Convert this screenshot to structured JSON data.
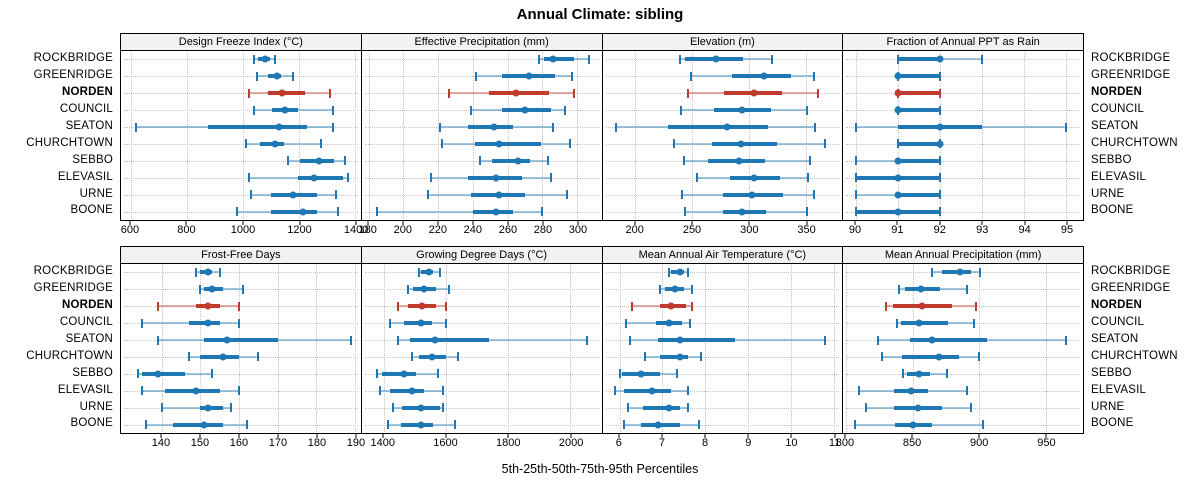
{
  "title": "Annual Climate: sibling",
  "caption": "5th-25th-50th-75th-95th Percentiles",
  "sites": [
    "ROCKBRIDGE",
    "GREENRIDGE",
    "NORDEN",
    "COUNCIL",
    "SEATON",
    "CHURCHTOWN",
    "SEBBO",
    "ELEVASIL",
    "URNE",
    "BOONE"
  ],
  "highlight_site": "NORDEN",
  "colors": {
    "series": "#1f77b4",
    "highlight": "#c13a2e",
    "grid": "#c4c4c4",
    "strip_bg": "#f2f2f2"
  },
  "chart_data": [
    {
      "type": "dotplot-percentiles",
      "title": "Design Freeze Index (°C)",
      "percentile_levels": [
        5,
        25,
        50,
        75,
        95
      ],
      "xlim": [
        565,
        1420
      ],
      "ticks": [
        600,
        800,
        1000,
        1200,
        1400
      ],
      "series": [
        {
          "site": "ROCKBRIDGE",
          "percentiles": [
            1040,
            1055,
            1080,
            1095,
            1115
          ]
        },
        {
          "site": "GREENRIDGE",
          "percentiles": [
            1050,
            1090,
            1120,
            1135,
            1180
          ]
        },
        {
          "site": "NORDEN",
          "percentiles": [
            1020,
            1090,
            1140,
            1220,
            1310
          ]
        },
        {
          "site": "COUNCIL",
          "percentiles": [
            1040,
            1105,
            1150,
            1195,
            1320
          ]
        },
        {
          "site": "SEATON",
          "percentiles": [
            620,
            875,
            1130,
            1230,
            1320
          ]
        },
        {
          "site": "CHURCHTOWN",
          "percentiles": [
            1010,
            1060,
            1115,
            1145,
            1280
          ]
        },
        {
          "site": "SEBBO",
          "percentiles": [
            1160,
            1205,
            1270,
            1325,
            1365
          ]
        },
        {
          "site": "ELEVASIL",
          "percentiles": [
            1020,
            1195,
            1255,
            1355,
            1375
          ]
        },
        {
          "site": "URNE",
          "percentiles": [
            1030,
            1100,
            1180,
            1265,
            1330
          ]
        },
        {
          "site": "BOONE",
          "percentiles": [
            980,
            1100,
            1215,
            1265,
            1340
          ]
        }
      ]
    },
    {
      "type": "dotplot-percentiles",
      "title": "Effective Precipitation (mm)",
      "percentile_levels": [
        5,
        25,
        50,
        75,
        95
      ],
      "xlim": [
        176,
        314
      ],
      "ticks": [
        180,
        200,
        220,
        240,
        260,
        280,
        300
      ],
      "series": [
        {
          "site": "ROCKBRIDGE",
          "percentiles": [
            278,
            281,
            286,
            298,
            307
          ]
        },
        {
          "site": "GREENRIDGE",
          "percentiles": [
            242,
            257,
            272,
            287,
            297
          ]
        },
        {
          "site": "NORDEN",
          "percentiles": [
            226,
            249,
            265,
            284,
            298
          ]
        },
        {
          "site": "COUNCIL",
          "percentiles": [
            239,
            257,
            270,
            285,
            293
          ]
        },
        {
          "site": "SEATON",
          "percentiles": [
            221,
            237,
            252,
            263,
            286
          ]
        },
        {
          "site": "CHURCHTOWN",
          "percentiles": [
            222,
            241,
            255,
            279,
            296
          ]
        },
        {
          "site": "SEBBO",
          "percentiles": [
            244,
            251,
            266,
            273,
            283
          ]
        },
        {
          "site": "ELEVASIL",
          "percentiles": [
            216,
            237,
            253,
            268,
            285
          ]
        },
        {
          "site": "URNE",
          "percentiles": [
            214,
            239,
            255,
            270,
            294
          ]
        },
        {
          "site": "BOONE",
          "percentiles": [
            185,
            240,
            253,
            263,
            280
          ]
        }
      ]
    },
    {
      "type": "dotplot-percentiles",
      "title": "Elevation (m)",
      "percentile_levels": [
        5,
        25,
        50,
        75,
        95
      ],
      "xlim": [
        171,
        382
      ],
      "ticks": [
        200,
        250,
        300,
        350
      ],
      "series": [
        {
          "site": "ROCKBRIDGE",
          "percentiles": [
            239,
            244,
            271,
            295,
            320
          ]
        },
        {
          "site": "GREENRIDGE",
          "percentiles": [
            249,
            285,
            313,
            337,
            357
          ]
        },
        {
          "site": "NORDEN",
          "percentiles": [
            246,
            278,
            304,
            329,
            361
          ]
        },
        {
          "site": "COUNCIL",
          "percentiles": [
            240,
            269,
            294,
            319,
            351
          ]
        },
        {
          "site": "SEATON",
          "percentiles": [
            183,
            229,
            281,
            317,
            358
          ]
        },
        {
          "site": "CHURCHTOWN",
          "percentiles": [
            234,
            267,
            293,
            325,
            367
          ]
        },
        {
          "site": "SEBBO",
          "percentiles": [
            243,
            264,
            291,
            314,
            354
          ]
        },
        {
          "site": "ELEVASIL",
          "percentiles": [
            254,
            283,
            304,
            327,
            352
          ]
        },
        {
          "site": "URNE",
          "percentiles": [
            241,
            277,
            303,
            330,
            357
          ]
        },
        {
          "site": "BOONE",
          "percentiles": [
            244,
            277,
            294,
            315,
            351
          ]
        }
      ]
    },
    {
      "type": "dotplot-percentiles",
      "title": "Fraction of Annual PPT as Rain",
      "percentile_levels": [
        5,
        25,
        50,
        75,
        95
      ],
      "xlim": [
        89.7,
        95.4
      ],
      "ticks": [
        90,
        91,
        92,
        93,
        94,
        95
      ],
      "series": [
        {
          "site": "ROCKBRIDGE",
          "percentiles": [
            91,
            91,
            92,
            92,
            93
          ]
        },
        {
          "site": "GREENRIDGE",
          "percentiles": [
            91,
            91,
            91,
            92,
            92
          ]
        },
        {
          "site": "NORDEN",
          "percentiles": [
            91,
            91,
            91,
            92,
            92
          ]
        },
        {
          "site": "COUNCIL",
          "percentiles": [
            91,
            91,
            91,
            92,
            92
          ]
        },
        {
          "site": "SEATON",
          "percentiles": [
            90,
            91,
            92,
            93,
            95
          ]
        },
        {
          "site": "CHURCHTOWN",
          "percentiles": [
            91,
            91,
            92,
            92,
            92
          ]
        },
        {
          "site": "SEBBO",
          "percentiles": [
            90,
            91,
            91,
            92,
            92
          ]
        },
        {
          "site": "ELEVASIL",
          "percentiles": [
            90,
            90,
            91,
            92,
            92
          ]
        },
        {
          "site": "URNE",
          "percentiles": [
            90,
            91,
            91,
            92,
            92
          ]
        },
        {
          "site": "BOONE",
          "percentiles": [
            90,
            90,
            91,
            92,
            92
          ]
        }
      ]
    },
    {
      "type": "dotplot-percentiles",
      "title": "Frost-Free Days",
      "percentile_levels": [
        5,
        25,
        50,
        75,
        95
      ],
      "xlim": [
        129.5,
        191.5
      ],
      "ticks": [
        140,
        150,
        160,
        170,
        180,
        190
      ],
      "series": [
        {
          "site": "ROCKBRIDGE",
          "percentiles": [
            149,
            150,
            152,
            153,
            155
          ]
        },
        {
          "site": "GREENRIDGE",
          "percentiles": [
            150,
            151,
            153,
            156,
            161
          ]
        },
        {
          "site": "NORDEN",
          "percentiles": [
            139,
            149,
            152,
            155,
            160
          ]
        },
        {
          "site": "COUNCIL",
          "percentiles": [
            135,
            147,
            152,
            155,
            160
          ]
        },
        {
          "site": "SEATON",
          "percentiles": [
            139,
            151,
            157,
            170,
            189
          ]
        },
        {
          "site": "CHURCHTOWN",
          "percentiles": [
            147,
            150,
            156,
            160,
            165
          ]
        },
        {
          "site": "SEBBO",
          "percentiles": [
            134,
            135,
            139,
            146,
            153
          ]
        },
        {
          "site": "ELEVASIL",
          "percentiles": [
            135,
            141,
            149,
            155,
            160
          ]
        },
        {
          "site": "URNE",
          "percentiles": [
            140,
            150,
            152,
            156,
            158
          ]
        },
        {
          "site": "BOONE",
          "percentiles": [
            136,
            143,
            151,
            156,
            162
          ]
        }
      ]
    },
    {
      "type": "dotplot-percentiles",
      "title": "Growing Degree Days (°C)",
      "percentile_levels": [
        5,
        25,
        50,
        75,
        95
      ],
      "xlim": [
        1330,
        2100
      ],
      "ticks": [
        1400,
        1600,
        1800,
        2000
      ],
      "series": [
        {
          "site": "ROCKBRIDGE",
          "percentiles": [
            1515,
            1520,
            1545,
            1560,
            1580
          ]
        },
        {
          "site": "GREENRIDGE",
          "percentiles": [
            1480,
            1495,
            1530,
            1570,
            1610
          ]
        },
        {
          "site": "NORDEN",
          "percentiles": [
            1445,
            1480,
            1525,
            1570,
            1600
          ]
        },
        {
          "site": "COUNCIL",
          "percentiles": [
            1420,
            1465,
            1520,
            1555,
            1600
          ]
        },
        {
          "site": "SEATON",
          "percentiles": [
            1445,
            1485,
            1565,
            1740,
            2055
          ]
        },
        {
          "site": "CHURCHTOWN",
          "percentiles": [
            1490,
            1515,
            1555,
            1600,
            1640
          ]
        },
        {
          "site": "SEBBO",
          "percentiles": [
            1380,
            1395,
            1465,
            1505,
            1575
          ]
        },
        {
          "site": "ELEVASIL",
          "percentiles": [
            1390,
            1420,
            1490,
            1530,
            1590
          ]
        },
        {
          "site": "URNE",
          "percentiles": [
            1430,
            1460,
            1520,
            1580,
            1590
          ]
        },
        {
          "site": "BOONE",
          "percentiles": [
            1415,
            1455,
            1520,
            1560,
            1630
          ]
        }
      ]
    },
    {
      "type": "dotplot-percentiles",
      "title": "Mean Annual Air Temperature (°C)",
      "percentile_levels": [
        5,
        25,
        50,
        75,
        95
      ],
      "xlim": [
        5.6,
        11.2
      ],
      "ticks": [
        6,
        7,
        8,
        9,
        10,
        11
      ],
      "series": [
        {
          "site": "ROCKBRIDGE",
          "percentiles": [
            7.15,
            7.2,
            7.4,
            7.5,
            7.6
          ]
        },
        {
          "site": "GREENRIDGE",
          "percentiles": [
            6.95,
            7.05,
            7.3,
            7.5,
            7.7
          ]
        },
        {
          "site": "NORDEN",
          "percentiles": [
            6.3,
            6.95,
            7.2,
            7.55,
            7.7
          ]
        },
        {
          "site": "COUNCIL",
          "percentiles": [
            6.15,
            6.85,
            7.15,
            7.45,
            7.65
          ]
        },
        {
          "site": "SEATON",
          "percentiles": [
            6.25,
            6.9,
            7.4,
            8.7,
            10.8
          ]
        },
        {
          "site": "CHURCHTOWN",
          "percentiles": [
            6.6,
            6.95,
            7.4,
            7.6,
            7.9
          ]
        },
        {
          "site": "SEBBO",
          "percentiles": [
            6.0,
            6.05,
            6.5,
            6.95,
            7.35
          ]
        },
        {
          "site": "ELEVASIL",
          "percentiles": [
            5.9,
            6.1,
            6.75,
            7.2,
            7.6
          ]
        },
        {
          "site": "URNE",
          "percentiles": [
            6.2,
            6.55,
            7.15,
            7.4,
            7.6
          ]
        },
        {
          "site": "BOONE",
          "percentiles": [
            6.1,
            6.5,
            6.9,
            7.4,
            7.85
          ]
        }
      ]
    },
    {
      "type": "dotplot-percentiles",
      "title": "Mean Annual Precipitation (mm)",
      "percentile_levels": [
        5,
        25,
        50,
        75,
        95
      ],
      "xlim": [
        798,
        978
      ],
      "ticks": [
        800,
        850,
        900,
        950
      ],
      "series": [
        {
          "site": "ROCKBRIDGE",
          "percentiles": [
            865,
            872,
            886,
            894,
            901
          ]
        },
        {
          "site": "GREENRIDGE",
          "percentiles": [
            840,
            844,
            856,
            871,
            891
          ]
        },
        {
          "site": "NORDEN",
          "percentiles": [
            830,
            835,
            857,
            880,
            898
          ]
        },
        {
          "site": "COUNCIL",
          "percentiles": [
            838,
            841,
            855,
            877,
            896
          ]
        },
        {
          "site": "SEATON",
          "percentiles": [
            824,
            848,
            865,
            906,
            965
          ]
        },
        {
          "site": "CHURCHTOWN",
          "percentiles": [
            827,
            842,
            870,
            885,
            900
          ]
        },
        {
          "site": "SEBBO",
          "percentiles": [
            843,
            846,
            855,
            863,
            876
          ]
        },
        {
          "site": "ELEVASIL",
          "percentiles": [
            810,
            836,
            849,
            862,
            891
          ]
        },
        {
          "site": "URNE",
          "percentiles": [
            815,
            836,
            854,
            872,
            894
          ]
        },
        {
          "site": "BOONE",
          "percentiles": [
            807,
            837,
            850,
            865,
            903
          ]
        }
      ]
    }
  ]
}
